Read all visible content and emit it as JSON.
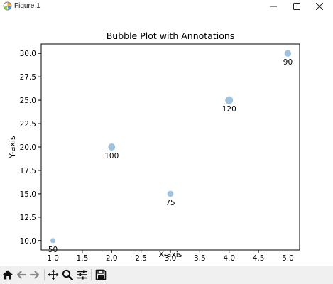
{
  "window": {
    "title": "Figure 1",
    "app_icon": "matplotlib-icon",
    "controls": [
      "minimize-icon",
      "maximize-icon",
      "close-icon"
    ]
  },
  "toolbar": {
    "buttons": [
      "home-icon",
      "back-arrow-icon",
      "forward-arrow-icon",
      "pan-icon",
      "zoom-icon",
      "configure-subplots-icon",
      "save-icon"
    ]
  },
  "chart_data": {
    "type": "scatter",
    "title": "Bubble Plot with Annotations",
    "xlabel": "X-axis",
    "ylabel": "Y-axis",
    "xlim": [
      0.8,
      5.2
    ],
    "ylim": [
      9.0,
      31.0
    ],
    "xticks": [
      "1.0",
      "1.5",
      "2.0",
      "2.5",
      "3.0",
      "3.5",
      "4.0",
      "4.5",
      "5.0"
    ],
    "yticks": [
      "10.0",
      "12.5",
      "15.0",
      "17.5",
      "20.0",
      "22.5",
      "25.0",
      "27.5",
      "30.0"
    ],
    "grid": false,
    "marker_color": "#7fadd3",
    "points": [
      {
        "x": 1,
        "y": 10,
        "size": 50,
        "label": "50"
      },
      {
        "x": 2,
        "y": 20,
        "size": 100,
        "label": "100"
      },
      {
        "x": 3,
        "y": 15,
        "size": 75,
        "label": "75"
      },
      {
        "x": 4,
        "y": 25,
        "size": 120,
        "label": "120"
      },
      {
        "x": 5,
        "y": 30,
        "size": 90,
        "label": "90"
      }
    ]
  }
}
